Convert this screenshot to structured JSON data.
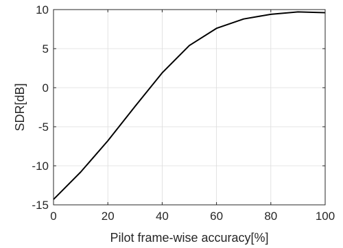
{
  "chart_data": {
    "type": "line",
    "title": "",
    "xlabel": "Pilot frame-wise accuracy[%]",
    "ylabel": "SDR[dB]",
    "xlim": [
      0,
      100
    ],
    "ylim": [
      -15,
      10
    ],
    "x_ticks": [
      "0",
      "20",
      "40",
      "60",
      "80",
      "100"
    ],
    "y_ticks": [
      "10",
      "5",
      "0",
      "-5",
      "-10",
      "-15"
    ],
    "grid": true,
    "series": [
      {
        "color": "#000000",
        "x": [
          0,
          10,
          20,
          30,
          40,
          50,
          60,
          70,
          80,
          90,
          100
        ],
        "y": [
          -14.3,
          -10.8,
          -6.8,
          -2.4,
          1.9,
          5.4,
          7.6,
          8.8,
          9.4,
          9.7,
          9.6
        ]
      }
    ]
  }
}
